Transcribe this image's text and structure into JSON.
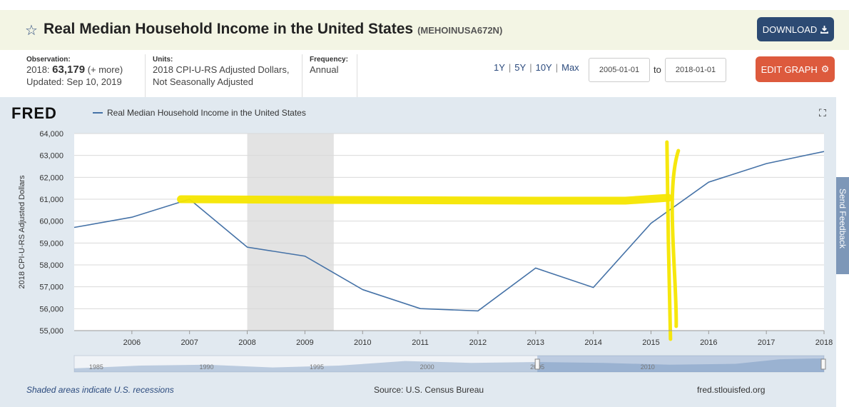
{
  "header": {
    "title": "Real Median Household Income in the United States",
    "series_id": "(MEHOINUSA672N)",
    "download_label": "DOWNLOAD"
  },
  "info": {
    "observation_label": "Observation:",
    "observation_date": "2018:",
    "observation_value": "63,179",
    "observation_more": "(+ more)",
    "updated": "Updated: Sep 10, 2019",
    "units_label": "Units:",
    "units_line1": "2018 CPI-U-RS Adjusted Dollars,",
    "units_line2": "Not Seasonally Adjusted",
    "frequency_label": "Frequency:",
    "frequency_value": "Annual"
  },
  "controls": {
    "range_1y": "1Y",
    "range_5y": "5Y",
    "range_10y": "10Y",
    "range_max": "Max",
    "separator": "|",
    "start_date": "2005-01-01",
    "to_label": "to",
    "end_date": "2018-01-01",
    "edit_label": "EDIT GRAPH"
  },
  "graph": {
    "logo": "FRED",
    "legend": "Real Median Household Income in the United States",
    "recession_note": "Shaded areas indicate U.S. recessions",
    "source": "Source: U.S. Census Bureau",
    "site": "fred.stlouisfed.org",
    "feedback": "Send Feedback"
  },
  "chart_data": {
    "type": "line",
    "title": "Real Median Household Income in the United States",
    "ylabel": "2018 CPI-U-RS Adjusted Dollars",
    "xlabel": "",
    "x": [
      2005,
      2006,
      2007,
      2008,
      2009,
      2010,
      2011,
      2012,
      2013,
      2014,
      2015,
      2016,
      2017,
      2018
    ],
    "series": [
      {
        "name": "Real Median Household Income in the United States",
        "values": [
          59712,
          60178,
          61000,
          58811,
          58400,
          56873,
          56006,
          55900,
          57856,
          56969,
          59901,
          61779,
          62626,
          63179
        ]
      }
    ],
    "xlim": [
      2005,
      2018
    ],
    "ylim": [
      55000,
      64000
    ],
    "yticks": [
      55000,
      56000,
      57000,
      58000,
      59000,
      60000,
      61000,
      62000,
      63000,
      64000
    ],
    "ytick_labels": [
      "55,000",
      "56,000",
      "57,000",
      "58,000",
      "59,000",
      "60,000",
      "61,000",
      "62,000",
      "63,000",
      "64,000"
    ],
    "xticks": [
      2006,
      2007,
      2008,
      2009,
      2010,
      2011,
      2012,
      2013,
      2014,
      2015,
      2016,
      2017,
      2018
    ],
    "xtick_labels": [
      "2006",
      "2007",
      "2008",
      "2009",
      "2010",
      "2011",
      "2012",
      "2013",
      "2014",
      "2015",
      "2016",
      "2017",
      "2018"
    ],
    "recession": {
      "start": 2008.0,
      "end": 2009.5
    },
    "annotation_hline_value": 61000,
    "annotation_hline_range": [
      2006.85,
      2015.3
    ],
    "annotation_vline_year": 2015.4,
    "navigator_labels": [
      "1985",
      "1990",
      "1995",
      "2000",
      "2005",
      "2010"
    ],
    "grid": true,
    "legend_position": "top-left"
  },
  "colors": {
    "line": "#4572a7",
    "recession": "#e3e3e3",
    "annotation": "#f5e600",
    "download_btn": "#2c4a73",
    "edit_btn": "#dd5a3d"
  }
}
